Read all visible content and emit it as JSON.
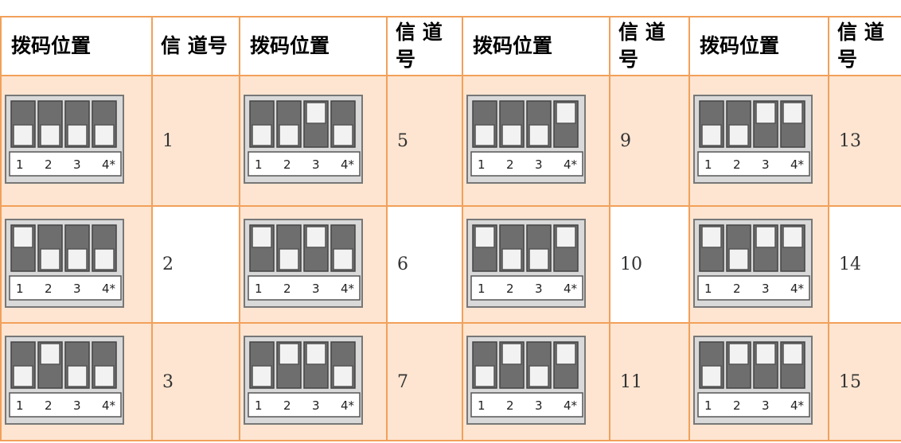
{
  "table": {
    "header": [
      "拨码位置",
      "信 道号",
      "拨码位置",
      "信 道号",
      "拨码位置",
      "信 道号",
      "拨码位置",
      "信 道号"
    ],
    "switch_labels": [
      "1",
      "2",
      "3",
      "4*"
    ],
    "rows": [
      [
        {
          "on": [
            false,
            false,
            false,
            false
          ],
          "channel": 1
        },
        {
          "on": [
            false,
            false,
            true,
            false
          ],
          "channel": 5
        },
        {
          "on": [
            false,
            false,
            false,
            true
          ],
          "channel": 9
        },
        {
          "on": [
            false,
            false,
            true,
            true
          ],
          "channel": 13
        }
      ],
      [
        {
          "on": [
            true,
            false,
            false,
            false
          ],
          "channel": 2
        },
        {
          "on": [
            true,
            false,
            true,
            false
          ],
          "channel": 6
        },
        {
          "on": [
            true,
            false,
            false,
            true
          ],
          "channel": 10
        },
        {
          "on": [
            true,
            false,
            true,
            true
          ],
          "channel": 14
        }
      ],
      [
        {
          "on": [
            false,
            true,
            false,
            false
          ],
          "channel": 3
        },
        {
          "on": [
            false,
            true,
            true,
            false
          ],
          "channel": 7
        },
        {
          "on": [
            false,
            true,
            false,
            true
          ],
          "channel": 11
        },
        {
          "on": [
            false,
            true,
            true,
            true
          ],
          "channel": 15
        }
      ]
    ]
  }
}
